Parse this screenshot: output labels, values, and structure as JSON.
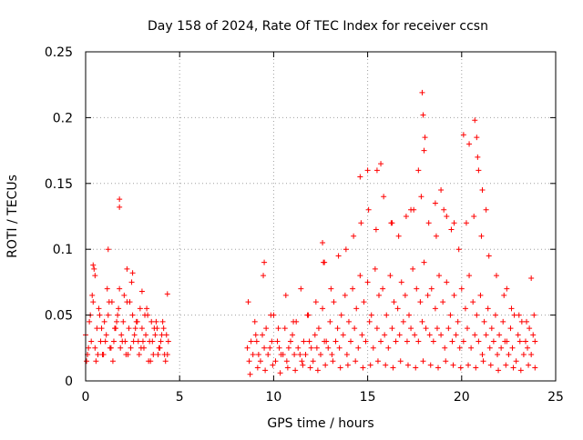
{
  "chart_data": {
    "type": "scatter",
    "title": "Day 158 of 2024, Rate Of TEC Index for receiver ccsn",
    "xlabel": "GPS time / hours",
    "ylabel": "ROTI / TECUs",
    "xlim": [
      0,
      25
    ],
    "ylim": [
      0,
      0.25
    ],
    "x_ticks": [
      0,
      5,
      10,
      15,
      20,
      25
    ],
    "x_tick_labels": [
      "0",
      "5",
      "10",
      "15",
      "20",
      "25"
    ],
    "y_ticks": [
      0,
      0.05,
      0.1,
      0.15,
      0.2,
      0.25
    ],
    "y_tick_labels": [
      "0",
      "0.05",
      "0.1",
      "0.15",
      "0.2",
      "0.25"
    ],
    "grid": true,
    "marker": "+",
    "color": "#ff0000",
    "series": [
      {
        "name": "ROTI",
        "note": "dense cloud approximated by sampled points; data gap from ~4.5h to ~8.5h",
        "x": [
          0.0,
          0.1,
          0.2,
          0.3,
          0.4,
          0.5,
          0.6,
          0.7,
          0.8,
          0.9,
          1.0,
          1.1,
          1.2,
          1.3,
          1.4,
          1.5,
          1.6,
          1.7,
          1.8,
          1.9,
          2.0,
          2.1,
          2.2,
          2.3,
          2.4,
          2.5,
          2.6,
          2.7,
          2.8,
          2.9,
          3.0,
          3.1,
          3.2,
          3.3,
          3.4,
          3.5,
          3.6,
          3.7,
          3.8,
          3.9,
          4.0,
          4.1,
          4.2,
          4.3,
          4.4,
          0.05,
          0.25,
          0.45,
          0.65,
          0.85,
          1.05,
          1.25,
          1.45,
          1.65,
          1.85,
          2.05,
          2.25,
          2.45,
          2.65,
          2.85,
          3.05,
          3.25,
          3.45,
          3.65,
          3.85,
          4.05,
          4.25,
          0.15,
          0.35,
          0.55,
          0.75,
          0.95,
          1.15,
          1.35,
          1.55,
          1.75,
          1.95,
          2.15,
          2.35,
          2.55,
          2.75,
          2.95,
          3.15,
          3.35,
          3.55,
          3.75,
          3.95,
          4.15,
          4.35,
          0.4,
          0.5,
          1.2,
          1.8,
          1.8,
          2.2,
          2.5,
          3.0,
          4.35,
          8.6,
          8.8,
          9.0,
          9.2,
          9.4,
          9.6,
          9.8,
          10.0,
          10.2,
          10.4,
          10.6,
          10.8,
          11.0,
          11.2,
          11.4,
          11.6,
          11.8,
          12.0,
          12.2,
          12.4,
          12.6,
          12.8,
          13.0,
          13.2,
          13.4,
          13.6,
          13.8,
          14.0,
          14.2,
          14.4,
          14.6,
          14.8,
          15.0,
          15.2,
          15.4,
          15.6,
          15.8,
          16.0,
          16.2,
          16.4,
          16.6,
          16.8,
          17.0,
          17.2,
          17.4,
          17.6,
          17.8,
          18.0,
          18.2,
          18.4,
          18.6,
          18.8,
          19.0,
          19.2,
          19.4,
          19.6,
          19.8,
          20.0,
          20.2,
          20.4,
          20.6,
          20.8,
          21.0,
          21.2,
          21.4,
          21.6,
          21.8,
          22.0,
          22.2,
          22.4,
          22.6,
          22.8,
          23.0,
          23.2,
          23.4,
          23.6,
          23.8,
          8.7,
          8.9,
          9.1,
          9.3,
          9.5,
          9.7,
          9.9,
          10.1,
          10.3,
          10.5,
          10.7,
          10.9,
          11.1,
          11.3,
          11.5,
          11.7,
          11.9,
          12.1,
          12.3,
          12.5,
          12.7,
          12.9,
          13.1,
          13.3,
          13.5,
          13.7,
          13.9,
          14.1,
          14.3,
          14.5,
          14.7,
          14.9,
          15.1,
          15.3,
          15.5,
          15.7,
          15.9,
          16.1,
          16.3,
          16.5,
          16.7,
          16.9,
          17.1,
          17.3,
          17.5,
          17.7,
          17.9,
          18.1,
          18.3,
          18.5,
          18.7,
          18.9,
          19.1,
          19.3,
          19.5,
          19.7,
          19.9,
          20.1,
          20.3,
          20.5,
          20.7,
          20.9,
          21.1,
          21.3,
          21.5,
          21.7,
          21.9,
          22.1,
          22.3,
          22.5,
          22.7,
          22.9,
          23.1,
          23.3,
          23.5,
          23.7,
          23.9,
          8.65,
          9.05,
          9.45,
          9.85,
          10.25,
          10.65,
          11.05,
          11.45,
          11.85,
          12.25,
          12.65,
          13.05,
          13.45,
          13.85,
          14.25,
          14.65,
          15.05,
          15.45,
          15.85,
          16.25,
          16.65,
          17.05,
          17.45,
          17.85,
          18.25,
          18.65,
          19.05,
          19.45,
          19.85,
          20.25,
          20.65,
          21.05,
          21.45,
          21.85,
          22.25,
          22.65,
          23.05,
          23.45,
          23.85,
          9.5,
          12.6,
          12.7,
          14.6,
          15.0,
          15.5,
          15.7,
          16.3,
          17.3,
          17.7,
          17.9,
          17.95,
          18.05,
          18.0,
          18.6,
          18.9,
          19.2,
          19.6,
          20.1,
          20.4,
          20.7,
          20.8,
          20.85,
          20.9,
          21.1,
          21.3,
          22.4,
          23.7,
          8.75,
          9.15,
          9.55,
          9.95,
          10.35,
          10.75,
          11.15,
          11.55,
          11.95,
          12.35,
          12.75,
          13.15,
          13.55,
          13.95,
          14.35,
          14.75,
          15.15,
          15.55,
          15.95,
          16.35,
          16.75,
          17.15,
          17.55,
          17.95,
          18.35,
          18.75,
          19.15,
          19.55,
          19.95,
          20.35,
          20.75,
          21.15,
          21.55,
          21.95,
          22.35,
          22.75,
          23.15,
          23.55,
          23.9
        ],
        "y": [
          0.035,
          0.02,
          0.045,
          0.03,
          0.06,
          0.025,
          0.04,
          0.055,
          0.03,
          0.02,
          0.045,
          0.035,
          0.05,
          0.025,
          0.06,
          0.03,
          0.04,
          0.05,
          0.07,
          0.035,
          0.045,
          0.03,
          0.06,
          0.04,
          0.025,
          0.05,
          0.035,
          0.045,
          0.03,
          0.055,
          0.04,
          0.025,
          0.035,
          0.05,
          0.03,
          0.045,
          0.02,
          0.035,
          0.04,
          0.025,
          0.03,
          0.045,
          0.02,
          0.035,
          0.03,
          0.015,
          0.05,
          0.085,
          0.02,
          0.04,
          0.03,
          0.06,
          0.015,
          0.045,
          0.025,
          0.065,
          0.02,
          0.075,
          0.04,
          0.02,
          0.03,
          0.055,
          0.015,
          0.04,
          0.02,
          0.035,
          0.015,
          0.025,
          0.065,
          0.015,
          0.05,
          0.02,
          0.07,
          0.025,
          0.04,
          0.055,
          0.03,
          0.02,
          0.06,
          0.03,
          0.045,
          0.025,
          0.05,
          0.015,
          0.03,
          0.045,
          0.025,
          0.04,
          0.02,
          0.088,
          0.08,
          0.1,
          0.138,
          0.132,
          0.085,
          0.082,
          0.068,
          0.066,
          0.025,
          0.03,
          0.045,
          0.02,
          0.035,
          0.04,
          0.025,
          0.05,
          0.03,
          0.02,
          0.04,
          0.025,
          0.035,
          0.045,
          0.02,
          0.03,
          0.05,
          0.025,
          0.035,
          0.04,
          0.055,
          0.03,
          0.045,
          0.06,
          0.04,
          0.05,
          0.065,
          0.045,
          0.07,
          0.055,
          0.08,
          0.06,
          0.075,
          0.05,
          0.085,
          0.065,
          0.07,
          0.05,
          0.08,
          0.06,
          0.055,
          0.075,
          0.065,
          0.05,
          0.085,
          0.07,
          0.06,
          0.09,
          0.065,
          0.07,
          0.055,
          0.08,
          0.06,
          0.075,
          0.05,
          0.065,
          0.045,
          0.07,
          0.055,
          0.08,
          0.06,
          0.05,
          0.065,
          0.045,
          0.055,
          0.04,
          0.05,
          0.035,
          0.045,
          0.03,
          0.04,
          0.05,
          0.035,
          0.045,
          0.03,
          0.04,
          0.035,
          0.015,
          0.02,
          0.03,
          0.015,
          0.025,
          0.02,
          0.03,
          0.015,
          0.025,
          0.02,
          0.015,
          0.03,
          0.02,
          0.025,
          0.015,
          0.02,
          0.03,
          0.015,
          0.025,
          0.02,
          0.03,
          0.025,
          0.02,
          0.03,
          0.025,
          0.035,
          0.02,
          0.03,
          0.04,
          0.025,
          0.035,
          0.03,
          0.045,
          0.025,
          0.04,
          0.03,
          0.035,
          0.025,
          0.04,
          0.03,
          0.035,
          0.045,
          0.03,
          0.04,
          0.035,
          0.03,
          0.045,
          0.04,
          0.035,
          0.03,
          0.04,
          0.035,
          0.025,
          0.04,
          0.03,
          0.035,
          0.025,
          0.03,
          0.04,
          0.025,
          0.035,
          0.03,
          0.02,
          0.035,
          0.025,
          0.03,
          0.02,
          0.025,
          0.03,
          0.02,
          0.025,
          0.015,
          0.03,
          0.02,
          0.025,
          0.02,
          0.03,
          0.06,
          0.035,
          0.08,
          0.05,
          0.04,
          0.065,
          0.045,
          0.07,
          0.05,
          0.06,
          0.09,
          0.07,
          0.095,
          0.1,
          0.11,
          0.12,
          0.13,
          0.115,
          0.14,
          0.12,
          0.11,
          0.125,
          0.13,
          0.14,
          0.12,
          0.11,
          0.13,
          0.115,
          0.1,
          0.12,
          0.125,
          0.11,
          0.095,
          0.08,
          0.065,
          0.055,
          0.05,
          0.045,
          0.05,
          0.09,
          0.105,
          0.09,
          0.155,
          0.16,
          0.16,
          0.165,
          0.12,
          0.13,
          0.16,
          0.219,
          0.202,
          0.185,
          0.175,
          0.135,
          0.145,
          0.125,
          0.12,
          0.187,
          0.18,
          0.198,
          0.185,
          0.17,
          0.16,
          0.145,
          0.13,
          0.07,
          0.078,
          0.005,
          0.01,
          0.008,
          0.012,
          0.006,
          0.01,
          0.008,
          0.012,
          0.01,
          0.008,
          0.012,
          0.015,
          0.01,
          0.012,
          0.015,
          0.01,
          0.012,
          0.015,
          0.012,
          0.01,
          0.015,
          0.012,
          0.01,
          0.015,
          0.012,
          0.01,
          0.015,
          0.012,
          0.01,
          0.012,
          0.01,
          0.015,
          0.012,
          0.008,
          0.012,
          0.01,
          0.008,
          0.012,
          0.01
        ]
      }
    ]
  }
}
